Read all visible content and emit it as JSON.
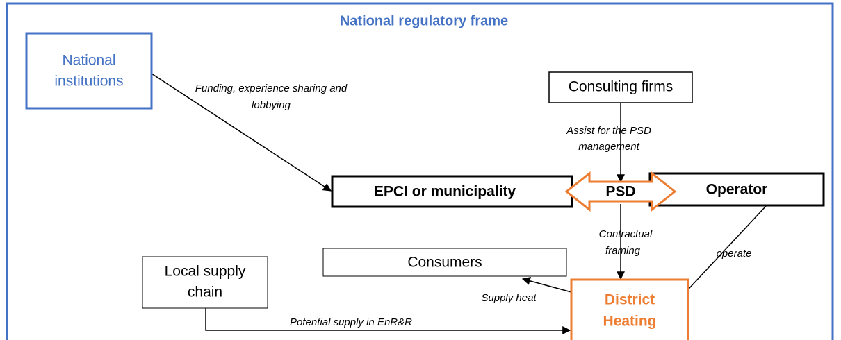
{
  "title": "National regulatory frame",
  "nodes": [
    {
      "lines": [
        "National",
        "institutions"
      ]
    },
    {
      "lines": [
        "Consulting firms"
      ]
    },
    {
      "lines": [
        "EPCI or municipality"
      ]
    },
    {
      "lines": [
        "PSD"
      ]
    },
    {
      "lines": [
        "Operator"
      ]
    },
    {
      "lines": [
        "Consumers"
      ]
    },
    {
      "lines": [
        "Local supply",
        "chain"
      ]
    },
    {
      "lines": [
        "District",
        "Heating"
      ]
    }
  ],
  "edges": [
    {
      "lines": [
        "Funding, experience sharing and",
        "lobbying"
      ]
    },
    {
      "lines": [
        "Assist for the PSD",
        "management"
      ]
    },
    {
      "lines": [
        "Contractual",
        "framing"
      ]
    },
    {
      "lines": [
        "operate"
      ]
    },
    {
      "lines": [
        "Supply heat"
      ]
    },
    {
      "lines": [
        "Potential supply in EnR&R"
      ]
    }
  ]
}
